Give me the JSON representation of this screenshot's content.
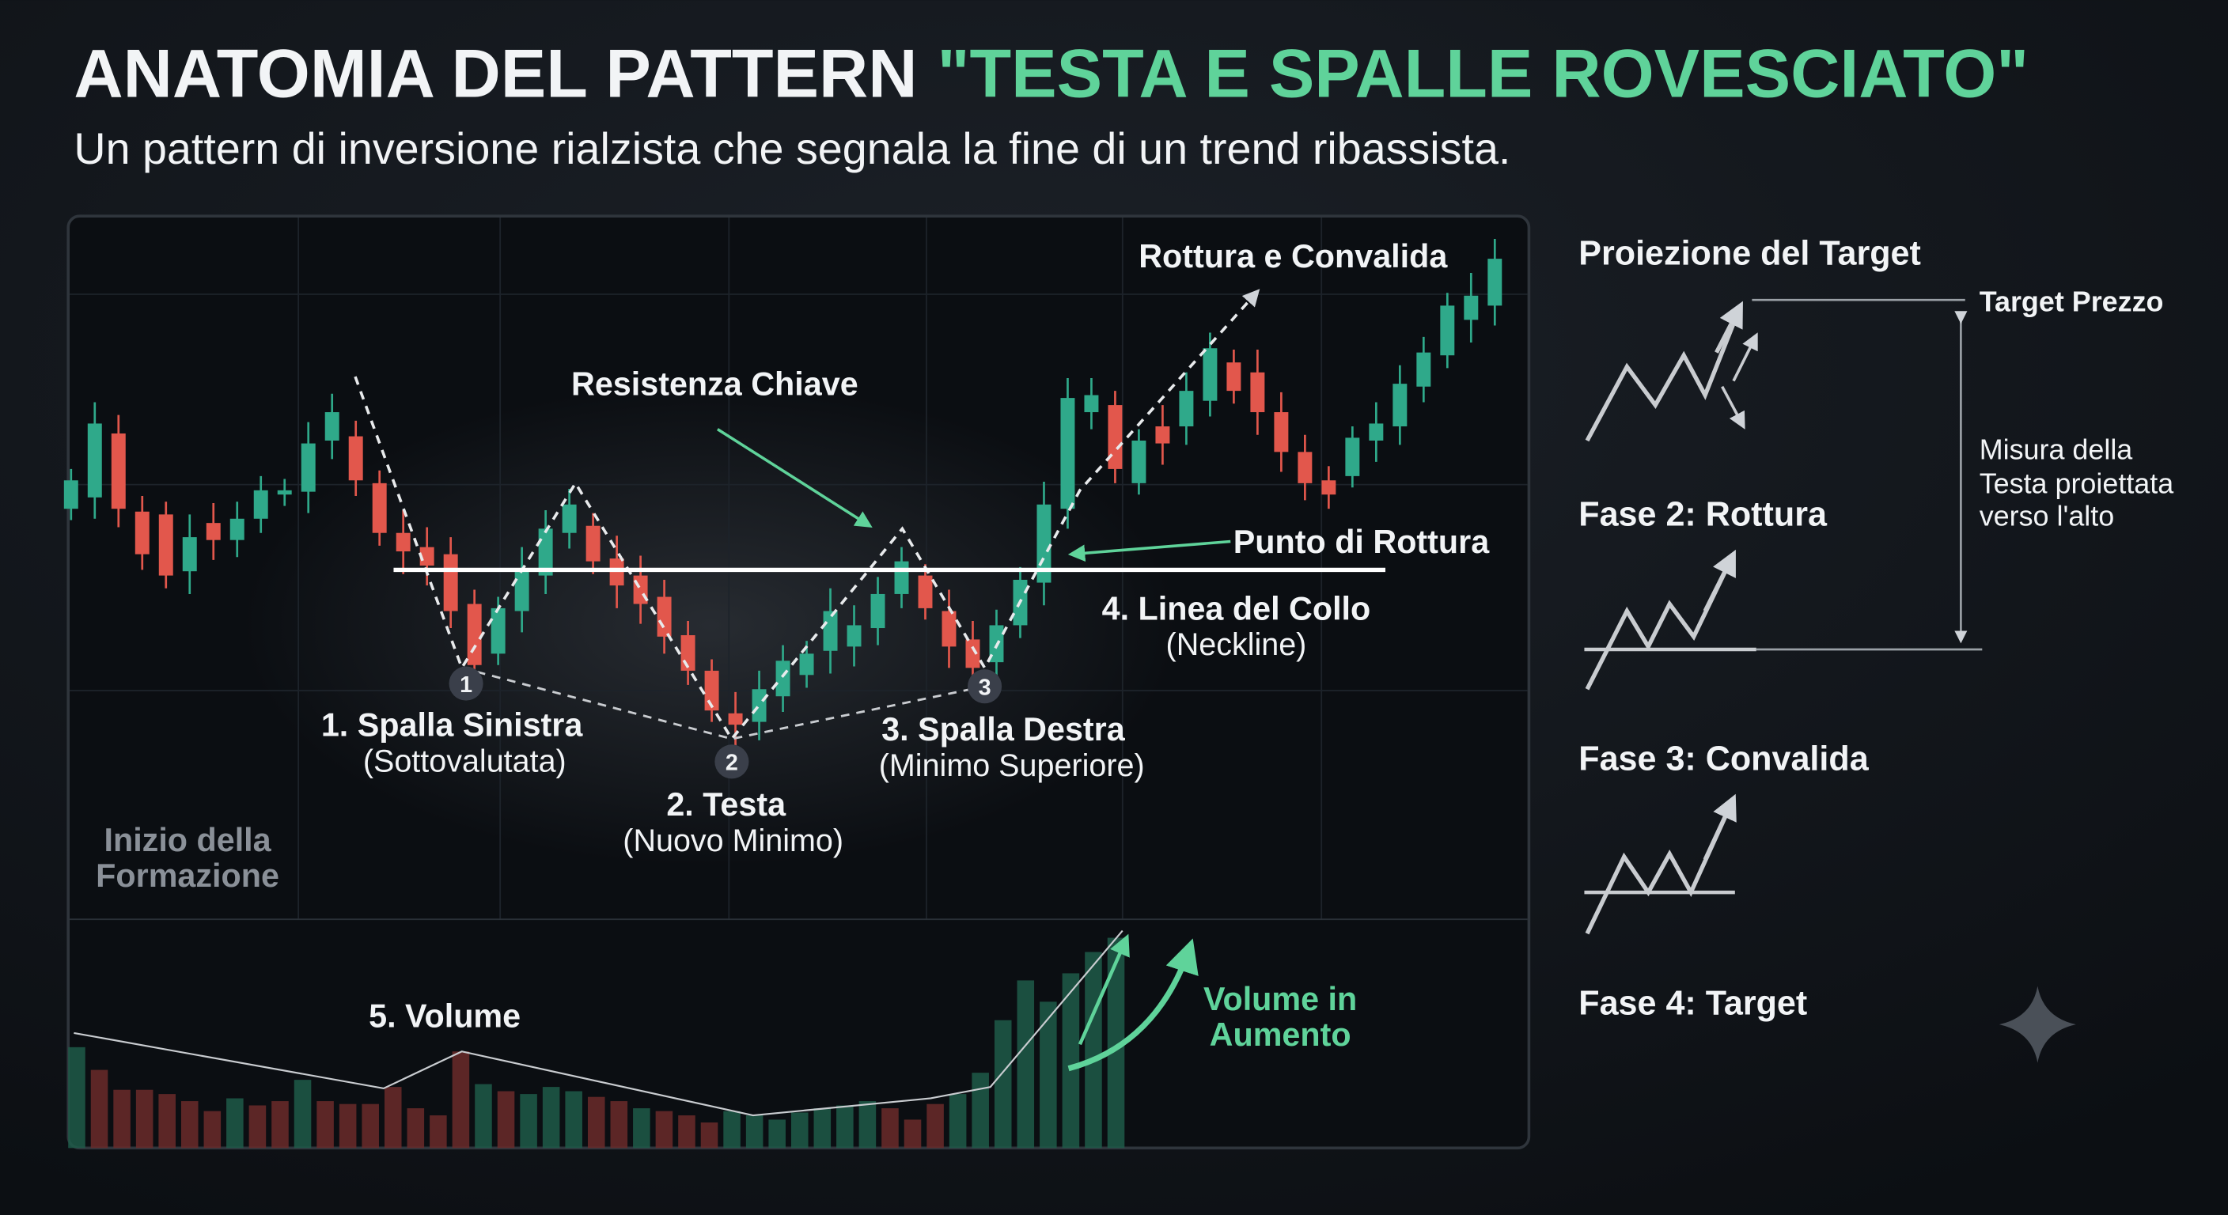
{
  "header": {
    "title": "ANATOMIA DEL PATTERN",
    "title_highlight": "\"TESTA E SPALLE ROVESCIATO\"",
    "subtitle": "Un pattern di inversione rialzista che segnala la fine di un trend ribassista."
  },
  "chart": {
    "breakout_label": "Rottura e Convalida",
    "resistance_label": "Resistenza Chiave",
    "breakout_point_label": "Punto di Rottura",
    "neckline_label": "4. Linea del Collo",
    "neckline_sub": "(Neckline)",
    "left_shoulder_label": "1. Spalla Sinistra",
    "left_shoulder_sub": "(Sottovalutata)",
    "head_label": "2. Testa",
    "head_sub": "(Nuovo Minimo)",
    "right_shoulder_label": "3. Spalla Destra",
    "right_shoulder_sub": "(Minimo Superiore)",
    "start_label": [
      "Inizio della",
      "Formazione"
    ],
    "volume_label": "5. Volume",
    "volume_rising_label": [
      "Volume in",
      "Aumento"
    ],
    "markers": [
      "1",
      "2",
      "3"
    ]
  },
  "side_panel": {
    "title": "Proiezione del Target",
    "target_label": "Target Prezzo",
    "measure_label": [
      "Misura della",
      "Testa proiettata",
      "verso l'alto"
    ],
    "phase2": "Fase 2: Rottura",
    "phase3": "Fase 3: Convalida",
    "phase4": "Fase 4: Target"
  }
}
